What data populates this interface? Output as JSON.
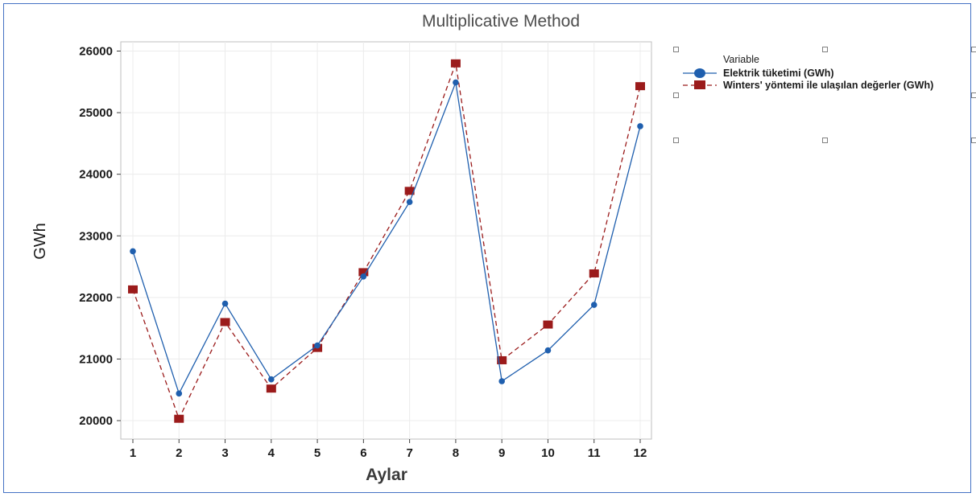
{
  "chart_data": {
    "type": "line",
    "title": "Multiplicative Method",
    "xlabel": "Aylar",
    "ylabel": "GWh",
    "categories": [
      1,
      2,
      3,
      4,
      5,
      6,
      7,
      8,
      9,
      10,
      11,
      12
    ],
    "ylim": [
      19700,
      26150
    ],
    "yticks": [
      20000,
      21000,
      22000,
      23000,
      24000,
      25000,
      26000
    ],
    "grid": true,
    "legend_title": "Variable",
    "legend_position": "right",
    "series": [
      {
        "name": "Elektrik tüketimi (GWh)",
        "color": "#1f5fae",
        "marker": "circle",
        "line": "solid",
        "values": [
          22750,
          20440,
          21900,
          20670,
          21220,
          22340,
          23550,
          25490,
          20640,
          21140,
          21880,
          24780
        ]
      },
      {
        "name": "Winters' yöntemi ile ulaşılan değerler (GWh)",
        "color": "#9b1b1b",
        "marker": "square",
        "line": "dashed",
        "values": [
          22130,
          20030,
          21600,
          20520,
          21180,
          22410,
          23730,
          25800,
          20980,
          21560,
          22390,
          25430
        ]
      }
    ]
  }
}
